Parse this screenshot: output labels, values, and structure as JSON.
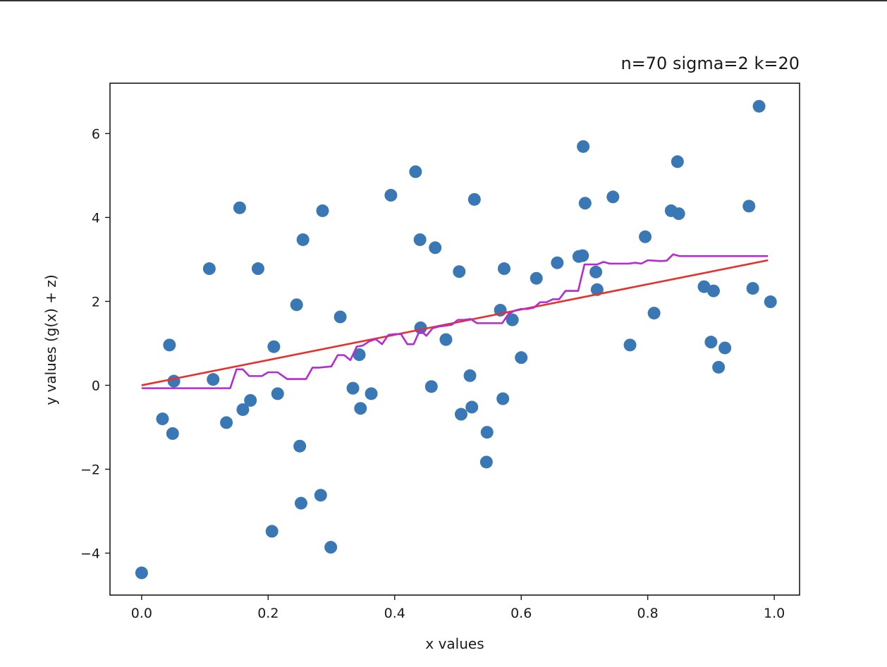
{
  "chart_data": {
    "type": "scatter",
    "title": "n=70 sigma=2 k=20",
    "xlabel": "x values",
    "ylabel": "y values (g(x) + z)",
    "xlim": [
      -0.05,
      1.04
    ],
    "ylim": [
      -5.0,
      7.2
    ],
    "xticks": [
      0.0,
      0.2,
      0.4,
      0.6,
      0.8,
      1.0
    ],
    "xtick_labels": [
      "0.0",
      "0.2",
      "0.4",
      "0.6",
      "0.8",
      "1.0"
    ],
    "yticks": [
      -4,
      -2,
      0,
      2,
      4,
      6
    ],
    "ytick_labels": [
      "−4",
      "−2",
      "0",
      "2",
      "4",
      "6"
    ],
    "grid": false,
    "colors": {
      "points": "#3a78b5",
      "linear_fit": "#e8302a",
      "knn_fit": "#b32bd1",
      "axes": "#1a1a1a"
    },
    "points": {
      "x": [
        0.0,
        0.033,
        0.044,
        0.049,
        0.051,
        0.107,
        0.113,
        0.134,
        0.155,
        0.16,
        0.172,
        0.184,
        0.206,
        0.209,
        0.215,
        0.245,
        0.25,
        0.252,
        0.255,
        0.283,
        0.286,
        0.299,
        0.314,
        0.334,
        0.344,
        0.346,
        0.363,
        0.394,
        0.433,
        0.44,
        0.441,
        0.458,
        0.464,
        0.481,
        0.502,
        0.505,
        0.519,
        0.522,
        0.526,
        0.545,
        0.546,
        0.567,
        0.571,
        0.573,
        0.586,
        0.6,
        0.624,
        0.657,
        0.691,
        0.697,
        0.698,
        0.701,
        0.718,
        0.72,
        0.745,
        0.772,
        0.796,
        0.81,
        0.837,
        0.847,
        0.849,
        0.889,
        0.9,
        0.904,
        0.912,
        0.922,
        0.96,
        0.966,
        0.976,
        0.994
      ],
      "y": [
        -4.47,
        -0.8,
        0.96,
        -1.15,
        0.1,
        2.78,
        0.14,
        -0.89,
        4.23,
        -0.58,
        -0.36,
        2.78,
        -3.48,
        0.92,
        -0.2,
        1.92,
        -1.45,
        -2.81,
        3.47,
        -2.62,
        4.16,
        -3.86,
        1.63,
        -0.07,
        0.73,
        -0.55,
        -0.2,
        4.53,
        5.09,
        3.47,
        1.37,
        -0.03,
        3.28,
        1.09,
        2.71,
        -0.69,
        0.23,
        -0.52,
        4.43,
        -1.83,
        -1.12,
        1.79,
        -0.32,
        2.78,
        1.56,
        0.66,
        2.55,
        2.92,
        3.07,
        3.09,
        5.69,
        4.34,
        2.7,
        2.28,
        4.49,
        0.96,
        3.54,
        1.72,
        4.16,
        5.33,
        4.09,
        2.35,
        1.03,
        2.25,
        0.43,
        0.89,
        4.27,
        2.31,
        6.65,
        1.99
      ]
    },
    "linear_fit": {
      "x": [
        0.0,
        0.99
      ],
      "y": [
        0.0,
        2.98
      ]
    },
    "knn_fit": {
      "x": [
        0.0,
        0.14,
        0.15,
        0.16,
        0.17,
        0.19,
        0.2,
        0.215,
        0.23,
        0.25,
        0.26,
        0.27,
        0.28,
        0.3,
        0.31,
        0.32,
        0.33,
        0.34,
        0.35,
        0.36,
        0.37,
        0.38,
        0.39,
        0.4,
        0.41,
        0.42,
        0.43,
        0.44,
        0.45,
        0.46,
        0.47,
        0.48,
        0.49,
        0.5,
        0.51,
        0.52,
        0.53,
        0.54,
        0.55,
        0.56,
        0.57,
        0.58,
        0.59,
        0.6,
        0.61,
        0.62,
        0.63,
        0.64,
        0.65,
        0.66,
        0.67,
        0.68,
        0.69,
        0.7,
        0.71,
        0.72,
        0.73,
        0.74,
        0.75,
        0.76,
        0.77,
        0.78,
        0.79,
        0.8,
        0.81,
        0.82,
        0.83,
        0.84,
        0.85,
        0.86,
        0.99
      ],
      "y": [
        -0.07,
        -0.07,
        0.38,
        0.38,
        0.22,
        0.22,
        0.31,
        0.31,
        0.15,
        0.15,
        0.15,
        0.42,
        0.42,
        0.45,
        0.72,
        0.72,
        0.6,
        0.92,
        0.95,
        1.05,
        1.1,
        0.98,
        1.2,
        1.22,
        1.22,
        0.98,
        0.98,
        1.32,
        1.18,
        1.36,
        1.4,
        1.42,
        1.44,
        1.56,
        1.56,
        1.58,
        1.48,
        1.48,
        1.48,
        1.48,
        1.48,
        1.7,
        1.78,
        1.82,
        1.82,
        1.85,
        1.98,
        1.98,
        2.05,
        2.05,
        2.25,
        2.25,
        2.25,
        2.88,
        2.88,
        2.88,
        2.94,
        2.9,
        2.9,
        2.9,
        2.9,
        2.92,
        2.9,
        2.98,
        2.97,
        2.96,
        2.97,
        3.12,
        3.08,
        3.08,
        3.08
      ]
    }
  }
}
